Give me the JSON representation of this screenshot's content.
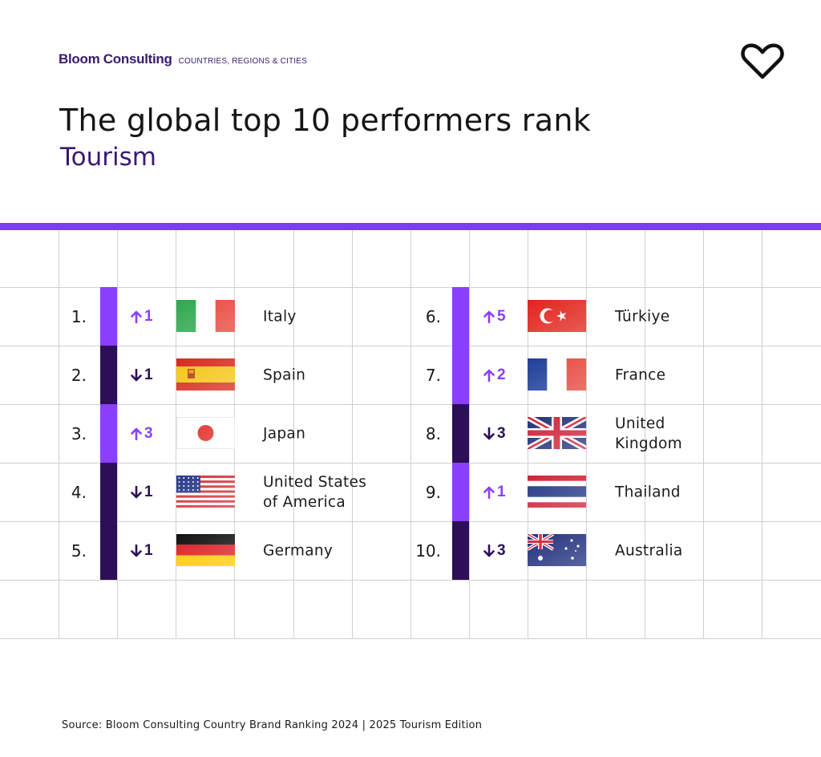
{
  "header": {
    "brand_name": "Bloom Consulting",
    "brand_tagline": "COUNTRIES, REGIONS & CITIES",
    "title": "The global top 10 performers rank",
    "subtitle": "Tourism"
  },
  "colors": {
    "up": "#8a3ffc",
    "down": "#2c0f57",
    "accent_bar": "#7b3cf6",
    "brand": "#3b1a6e"
  },
  "rankings": [
    {
      "rank": "1.",
      "direction": "up",
      "change": "1",
      "country": "Italy",
      "flag": "italy-flag"
    },
    {
      "rank": "2.",
      "direction": "down",
      "change": "1",
      "country": "Spain",
      "flag": "spain-flag"
    },
    {
      "rank": "3.",
      "direction": "up",
      "change": "3",
      "country": "Japan",
      "flag": "japan-flag"
    },
    {
      "rank": "4.",
      "direction": "down",
      "change": "1",
      "country": "United States of America",
      "flag": "usa-flag"
    },
    {
      "rank": "5.",
      "direction": "down",
      "change": "1",
      "country": "Germany",
      "flag": "germany-flag"
    },
    {
      "rank": "6.",
      "direction": "up",
      "change": "5",
      "country": "Türkiye",
      "flag": "turkiye-flag"
    },
    {
      "rank": "7.",
      "direction": "up",
      "change": "2",
      "country": "France",
      "flag": "france-flag"
    },
    {
      "rank": "8.",
      "direction": "down",
      "change": "3",
      "country": "United Kingdom",
      "flag": "uk-flag"
    },
    {
      "rank": "9.",
      "direction": "up",
      "change": "1",
      "country": "Thailand",
      "flag": "thailand-flag"
    },
    {
      "rank": "10.",
      "direction": "down",
      "change": "3",
      "country": "Australia",
      "flag": "australia-flag"
    }
  ],
  "footer": {
    "source": "Source: Bloom Consulting Country Brand Ranking 2024 | 2025 Tourism Edition"
  }
}
